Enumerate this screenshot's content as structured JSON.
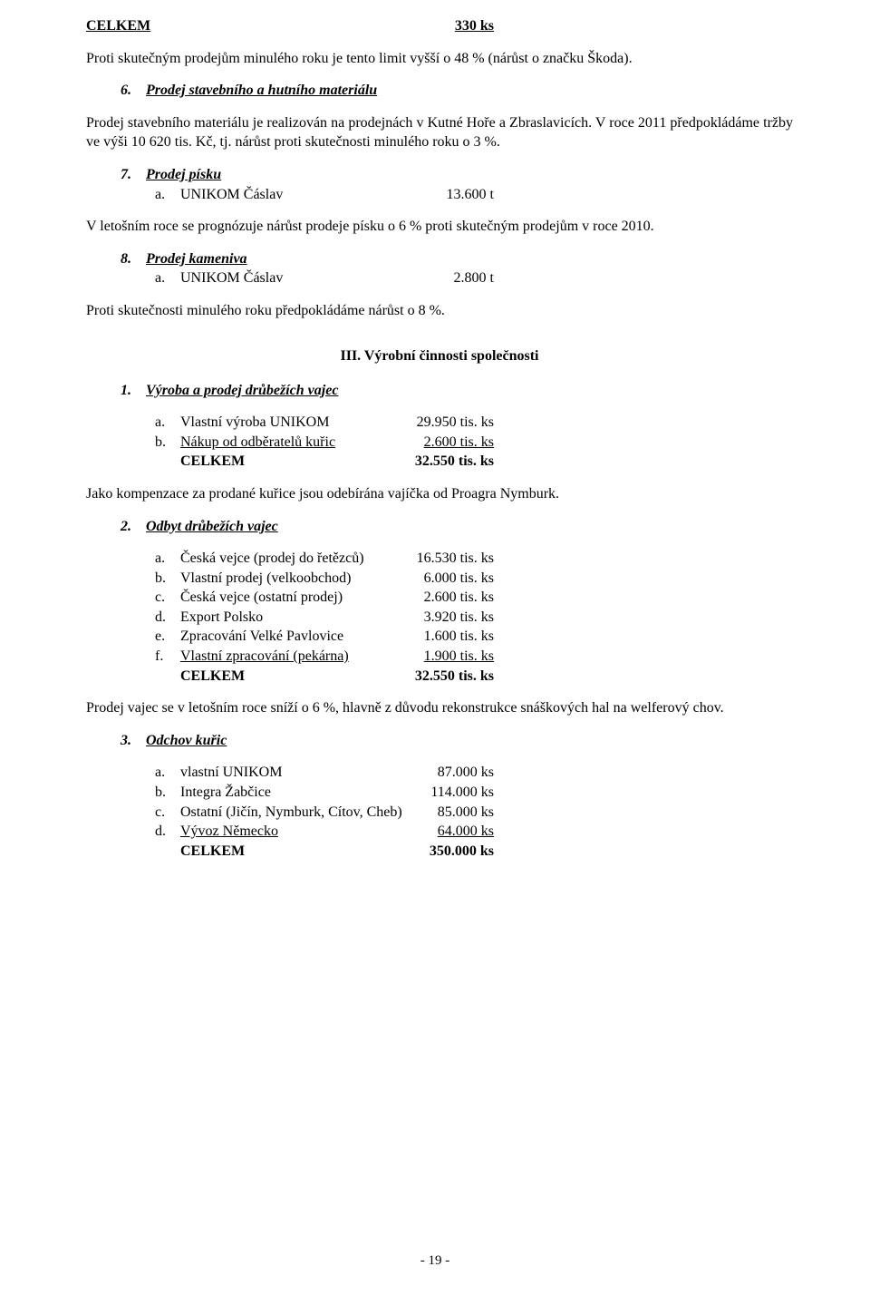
{
  "top_total": {
    "label": "CELKEM",
    "value": "330 ks"
  },
  "top_para": "Proti skutečným prodejům minulého roku je tento limit vyšší o 48 % (nárůst o značku Škoda).",
  "sec6": {
    "num": "6.",
    "title": "Prodej stavebního a hutního materiálu",
    "para": "Prodej stavebního materiálu je realizován na prodejnách v Kutné Hoře a Zbraslavicích. V roce 2011 předpokládáme tržby ve výši 10 620 tis. Kč, tj. nárůst proti skutečnosti minulého roku o 3 %."
  },
  "sec7": {
    "num": "7.",
    "title": "Prodej písku",
    "item_idx": "a.",
    "item_label": "UNIKOM Čáslav",
    "item_value": "13.600 t",
    "para": "V letošním roce se prognózuje nárůst prodeje písku o 6 % proti skutečným prodejům v roce 2010."
  },
  "sec8": {
    "num": "8.",
    "title": "Prodej kameniva",
    "item_idx": "a.",
    "item_label": "UNIKOM Čáslav",
    "item_value": "2.800 t",
    "para": "Proti skutečnosti minulého roku předpokládáme nárůst o 8 %."
  },
  "heading3": "III. Výrobní činnosti společnosti",
  "s1": {
    "num": "1.",
    "title": "Výroba a prodej drůbežích vajec",
    "rows": [
      {
        "idx": "a.",
        "label": "Vlastní výroba UNIKOM",
        "value": "29.950 tis. ks",
        "u": false
      },
      {
        "idx": "b.",
        "label": "Nákup od odběratelů kuřic",
        "value": "2.600 tis. ks",
        "u": true
      }
    ],
    "total_label": "CELKEM",
    "total_value": "32.550 tis. ks",
    "para": "Jako kompenzace za prodané kuřice jsou odebírána vajíčka od Proagra Nymburk."
  },
  "s2": {
    "num": "2.",
    "title": "Odbyt drůbežích vajec",
    "rows": [
      {
        "idx": "a.",
        "label": "Česká vejce (prodej do řetězců)",
        "value": "16.530 tis. ks",
        "u": false
      },
      {
        "idx": "b.",
        "label": "Vlastní prodej (velkoobchod)",
        "value": "6.000 tis. ks",
        "u": false
      },
      {
        "idx": "c.",
        "label": "Česká vejce (ostatní prodej)",
        "value": "2.600 tis. ks",
        "u": false
      },
      {
        "idx": "d.",
        "label": "Export Polsko",
        "value": "3.920 tis. ks",
        "u": false
      },
      {
        "idx": "e.",
        "label": "Zpracování Velké Pavlovice",
        "value": "1.600 tis. ks",
        "u": false
      },
      {
        "idx": "f.",
        "label": "Vlastní zpracování (pekárna)",
        "value": "1.900 tis. ks",
        "u": true
      }
    ],
    "total_label": "CELKEM",
    "total_value": "32.550 tis. ks",
    "para": "Prodej vajec se v letošním roce sníží o 6 %, hlavně z důvodu rekonstrukce snáškových hal na welferový chov."
  },
  "s3": {
    "num": "3.",
    "title": "Odchov kuřic",
    "rows": [
      {
        "idx": "a.",
        "label": "vlastní UNIKOM",
        "value": "87.000 ks",
        "u": false
      },
      {
        "idx": "b.",
        "label": "Integra Žabčice",
        "value": "114.000 ks",
        "u": false
      },
      {
        "idx": "c.",
        "label": "Ostatní (Jičín, Nymburk, Cítov, Cheb)",
        "value": "85.000 ks",
        "u": false
      },
      {
        "idx": "d.",
        "label": "Vývoz Německo",
        "value": "64.000 ks",
        "u": true
      }
    ],
    "total_label": "CELKEM",
    "total_value": "350.000 ks"
  },
  "page_number": "- 19 -",
  "value_column_width": "330px"
}
